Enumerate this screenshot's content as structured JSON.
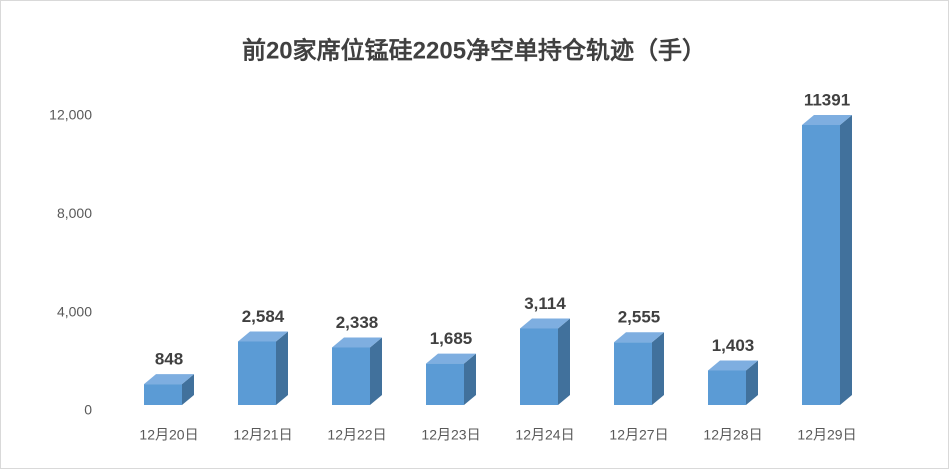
{
  "chart_data": {
    "type": "bar3d",
    "title": "前20家席位锰硅2205净空单持仓轨迹（手）",
    "categories": [
      "12月20日",
      "12月21日",
      "12月22日",
      "12月23日",
      "12月24日",
      "12月27日",
      "12月28日",
      "12月29日"
    ],
    "values": [
      848,
      2584,
      2338,
      1685,
      3114,
      2555,
      1403,
      11391
    ],
    "value_labels": [
      "848",
      "2,584",
      "2,338",
      "1,685",
      "3,114",
      "2,555",
      "1,403",
      "11391"
    ],
    "color": "#5b9bd5",
    "ylim": [
      0,
      12000
    ],
    "yticks": [
      0,
      {
        "value": 4000,
        "label": "4,000"
      },
      {
        "value": 8000,
        "label": "8,000"
      },
      {
        "value": 12000,
        "label": "12,000"
      }
    ],
    "grid": false
  }
}
